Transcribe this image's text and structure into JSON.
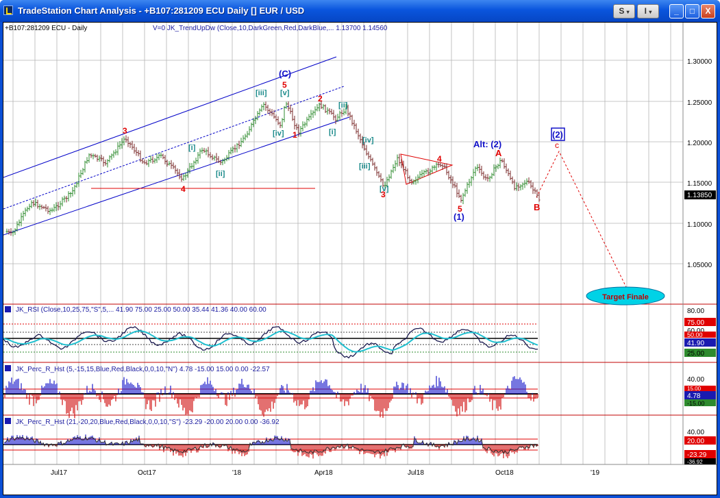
{
  "window": {
    "title": "TradeStation Chart Analysis - +B107:281209 ECU Daily [] EUR / USD",
    "buttons": {
      "s": "S",
      "i": "I",
      "minimize": "_",
      "maximize": "□",
      "close": "X"
    }
  },
  "main_chart": {
    "symbol_label": "+B107:281209 ECU - Daily",
    "indicator_label": "V=0  JK_TrendUpDw (Close,10,DarkGreen,Red,DarkBlue,...  1.13700  1.14560",
    "price_ticks": [
      "1.30000",
      "1.25000",
      "1.20000",
      "1.15000",
      "1.10000",
      "1.05000"
    ],
    "last_price": "1.13850",
    "target_label": "Target Finale",
    "wave_labels": {
      "c_paren": "(C)",
      "five_top": "5",
      "three_left": "3",
      "four_left": "4",
      "iii": "[iii]",
      "v": "[v]",
      "iv": "[iv]",
      "i_left": "[i]",
      "ii_left": "[ii]",
      "one_red": "1",
      "two_red": "2",
      "ii_right": "[ii]",
      "i_right": "[i]",
      "iv_right": "[iv]",
      "iii_right": "[iii]",
      "v_right": "[v]",
      "three_right": "3",
      "four_right": "4",
      "five_right": "5",
      "one_paren": "(1)",
      "alt2": "Alt: (2)",
      "a_label": "A",
      "b_label": "B",
      "c_small": "c",
      "two_box": "(2)"
    }
  },
  "rsi_panel": {
    "label": "JK_RSI (Close,10,25,75,\"S\",5,...  41.90  75.00  25.00  50.00  35.44  41.36  40.00  60.00",
    "ticks": [
      "80.00",
      "75.00",
      "60.00",
      "50.00",
      "41.90",
      "25.00"
    ]
  },
  "perc_panel_1": {
    "label": "JK_Perc_R_Hst (5,-15,15,Blue,Red,Black,0,0,10,\"N\")  4.78  -15.00  15.00  0.00  -22.57",
    "ticks": [
      "40.00",
      "15.00",
      "4.78",
      "-15.00"
    ]
  },
  "perc_panel_2": {
    "label": "JK_Perc_R_Hst (21,-20,20,Blue,Red,Black,0,0,10,\"S\")  -23.29  -20.00  20.00  0.00  -36.92",
    "ticks": [
      "40.00",
      "20.00",
      "-23.29",
      "-36.92"
    ]
  },
  "x_axis": {
    "labels": [
      "Jul17",
      "Oct17",
      "'18",
      "Apr18",
      "Jul18",
      "Oct18",
      "'19"
    ]
  },
  "colors": {
    "up_bar": "#2e8b2e",
    "down_bar": "#7a2a2a",
    "wave_red": "#e00000",
    "wave_blue": "#1010c8",
    "wave_teal": "#1a8a8a"
  }
}
